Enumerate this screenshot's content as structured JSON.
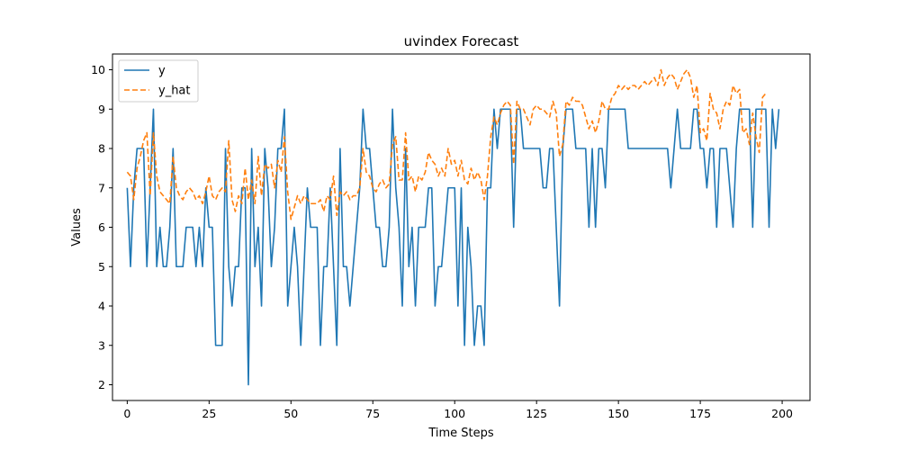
{
  "chart_data": {
    "type": "line",
    "title": "uvindex Forecast",
    "xlabel": "Time Steps",
    "ylabel": "Values",
    "xlim": [
      -4.5,
      208.5
    ],
    "ylim": [
      1.6,
      10.4
    ],
    "xticks": [
      0,
      25,
      50,
      75,
      100,
      125,
      150,
      175,
      200
    ],
    "yticks": [
      2,
      3,
      4,
      5,
      6,
      7,
      8,
      9,
      10
    ],
    "grid": false,
    "legend": "upper-left",
    "series": [
      {
        "name": "y",
        "color": "#1f77b4",
        "style": "solid",
        "values": [
          7,
          5,
          7,
          8,
          8,
          8,
          5,
          7,
          9,
          5,
          6,
          5,
          5,
          6,
          8,
          5,
          5,
          5,
          6,
          6,
          6,
          5,
          6,
          5,
          7,
          6,
          6,
          3,
          3,
          3,
          8,
          5,
          4,
          5,
          5,
          7,
          7,
          2,
          8,
          5,
          6,
          4,
          8,
          7,
          5,
          6,
          8,
          8,
          9,
          4,
          5,
          6,
          5,
          3,
          5,
          7,
          6,
          6,
          6,
          3,
          5,
          5,
          7,
          5,
          3,
          8,
          5,
          5,
          4,
          5,
          6,
          7,
          9,
          8,
          8,
          7,
          6,
          6,
          5,
          5,
          6,
          9,
          7,
          6,
          4,
          8,
          5,
          6,
          4,
          6,
          6,
          6,
          7,
          7,
          4,
          5,
          5,
          6,
          7,
          7,
          7,
          4,
          7,
          3,
          6,
          5,
          3,
          4,
          4,
          3,
          7,
          7,
          9,
          8,
          9,
          9,
          9,
          9,
          6,
          9,
          9,
          8,
          8,
          8,
          8,
          8,
          8,
          7,
          7,
          8,
          8,
          6,
          4,
          8,
          9,
          9,
          9,
          8,
          8,
          8,
          8,
          6,
          8,
          6,
          8,
          8,
          7,
          9,
          9,
          9,
          9,
          9,
          9,
          8,
          8,
          8,
          8,
          8,
          8,
          8,
          8,
          8,
          8,
          8,
          8,
          8,
          7,
          8,
          9,
          8,
          8,
          8,
          8,
          9,
          9,
          8,
          8,
          7,
          8,
          8,
          6,
          8,
          8,
          8,
          7,
          6,
          8,
          9,
          9,
          9,
          9,
          6,
          9,
          9,
          9,
          9,
          6,
          9,
          8,
          9
        ]
      },
      {
        "name": "y_hat",
        "color": "#ff7f0e",
        "style": "dashed",
        "values": [
          7.4,
          7.3,
          6.7,
          7.5,
          7.8,
          8.2,
          8.4,
          6.8,
          8.4,
          7.3,
          6.9,
          6.8,
          6.7,
          6.6,
          7.8,
          7.0,
          6.8,
          6.7,
          6.9,
          7.0,
          6.9,
          6.7,
          6.8,
          6.6,
          6.9,
          7.3,
          6.8,
          6.7,
          6.9,
          7.0,
          6.9,
          8.2,
          6.7,
          6.4,
          6.8,
          6.6,
          7.5,
          6.7,
          7.2,
          6.6,
          7.8,
          6.8,
          7.6,
          7.5,
          7.6,
          7.0,
          7.7,
          7.4,
          8.3,
          6.9,
          6.2,
          6.5,
          6.8,
          6.6,
          6.8,
          6.7,
          6.6,
          6.6,
          6.6,
          6.7,
          6.4,
          6.8,
          6.7,
          7.3,
          6.3,
          6.9,
          6.8,
          6.9,
          6.7,
          6.8,
          6.8,
          7.0,
          8.0,
          7.4,
          7.3,
          7.0,
          6.9,
          7.1,
          7.2,
          7.0,
          7.1,
          8.1,
          8.3,
          7.2,
          7.2,
          8.4,
          7.2,
          7.3,
          6.9,
          7.3,
          7.2,
          7.4,
          7.9,
          7.7,
          7.6,
          7.3,
          7.5,
          7.3,
          8.0,
          7.6,
          7.7,
          7.3,
          7.7,
          7.2,
          7.1,
          7.5,
          7.2,
          7.4,
          7.2,
          6.7,
          7.3,
          8.3,
          8.8,
          8.6,
          8.9,
          9.1,
          9.2,
          9.1,
          7.6,
          9.2,
          9.0,
          9.0,
          8.8,
          8.6,
          9.0,
          9.1,
          9.0,
          9.0,
          8.9,
          8.8,
          9.2,
          8.9,
          7.8,
          8.1,
          9.2,
          9.1,
          9.3,
          9.2,
          9.2,
          9.1,
          8.8,
          8.5,
          8.7,
          8.4,
          8.7,
          9.2,
          9.0,
          9.0,
          9.3,
          9.4,
          9.6,
          9.5,
          9.6,
          9.5,
          9.6,
          9.6,
          9.5,
          9.6,
          9.7,
          9.6,
          9.7,
          9.8,
          9.6,
          10.0,
          9.6,
          9.8,
          9.9,
          9.8,
          9.5,
          9.7,
          9.9,
          10.0,
          9.8,
          9.3,
          9.6,
          8.4,
          8.5,
          8.2,
          9.4,
          9.0,
          8.9,
          8.5,
          9.0,
          9.2,
          9.1,
          9.6,
          9.4,
          9.5,
          8.4,
          8.5,
          8.1,
          8.9,
          8.3,
          7.9,
          9.3,
          9.4
        ]
      }
    ]
  }
}
